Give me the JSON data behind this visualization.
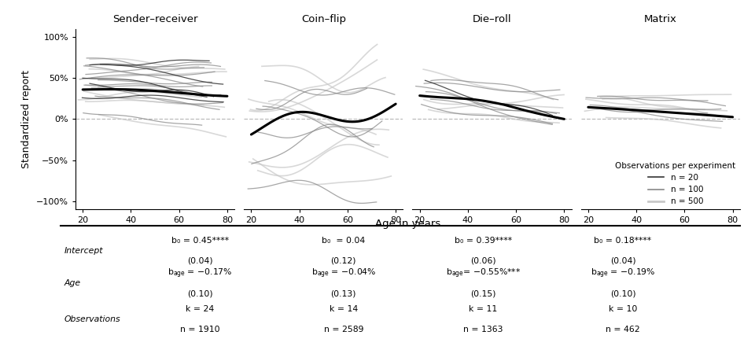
{
  "panels": [
    "Sender–receiver",
    "Coin–flip",
    "Die–roll",
    "Matrix"
  ],
  "xlabel": "Age in years",
  "ylabel": "Standardized report",
  "ylim": [
    -1.1,
    1.1
  ],
  "xlim": [
    17,
    83
  ],
  "yticks": [
    -1.0,
    -0.5,
    0.0,
    0.5,
    1.0
  ],
  "ytick_labels": [
    "−100%",
    "−50%",
    "0%",
    "50%",
    "100%"
  ],
  "xticks": [
    20,
    40,
    60,
    80
  ],
  "legend_title": "Observations per experiment",
  "legend_entries": [
    "n = 20",
    "n = 100",
    "n = 500"
  ],
  "background": "#ffffff",
  "table_rows": [
    "Intercept",
    "Age",
    "Observations"
  ],
  "intercept_line1": [
    "b₀ = 0.45****",
    "b₀  = 0.04",
    "b₀ = 0.39****",
    "b₀ = 0.18****"
  ],
  "intercept_line2": [
    "(0.04)",
    "(0.12)",
    "(0.06)",
    "(0.04)"
  ],
  "age_line1_pre": [
    "b",
    "b",
    "b",
    "b"
  ],
  "age_line1_sub": [
    "age",
    "age",
    "age",
    "age"
  ],
  "age_line1_post": [
    " = −0.17%",
    " = −0.04%",
    "= −0.55%***",
    " = −0.19%"
  ],
  "age_line2": [
    "(0.10)",
    "(0.13)",
    "(0.15)",
    "(0.10)"
  ],
  "obs_line1": [
    "k = 24",
    "k = 14",
    "k = 11",
    "k = 10"
  ],
  "obs_line2": [
    "n = 1910",
    "n = 2589",
    "n = 1363",
    "n = 462"
  ]
}
